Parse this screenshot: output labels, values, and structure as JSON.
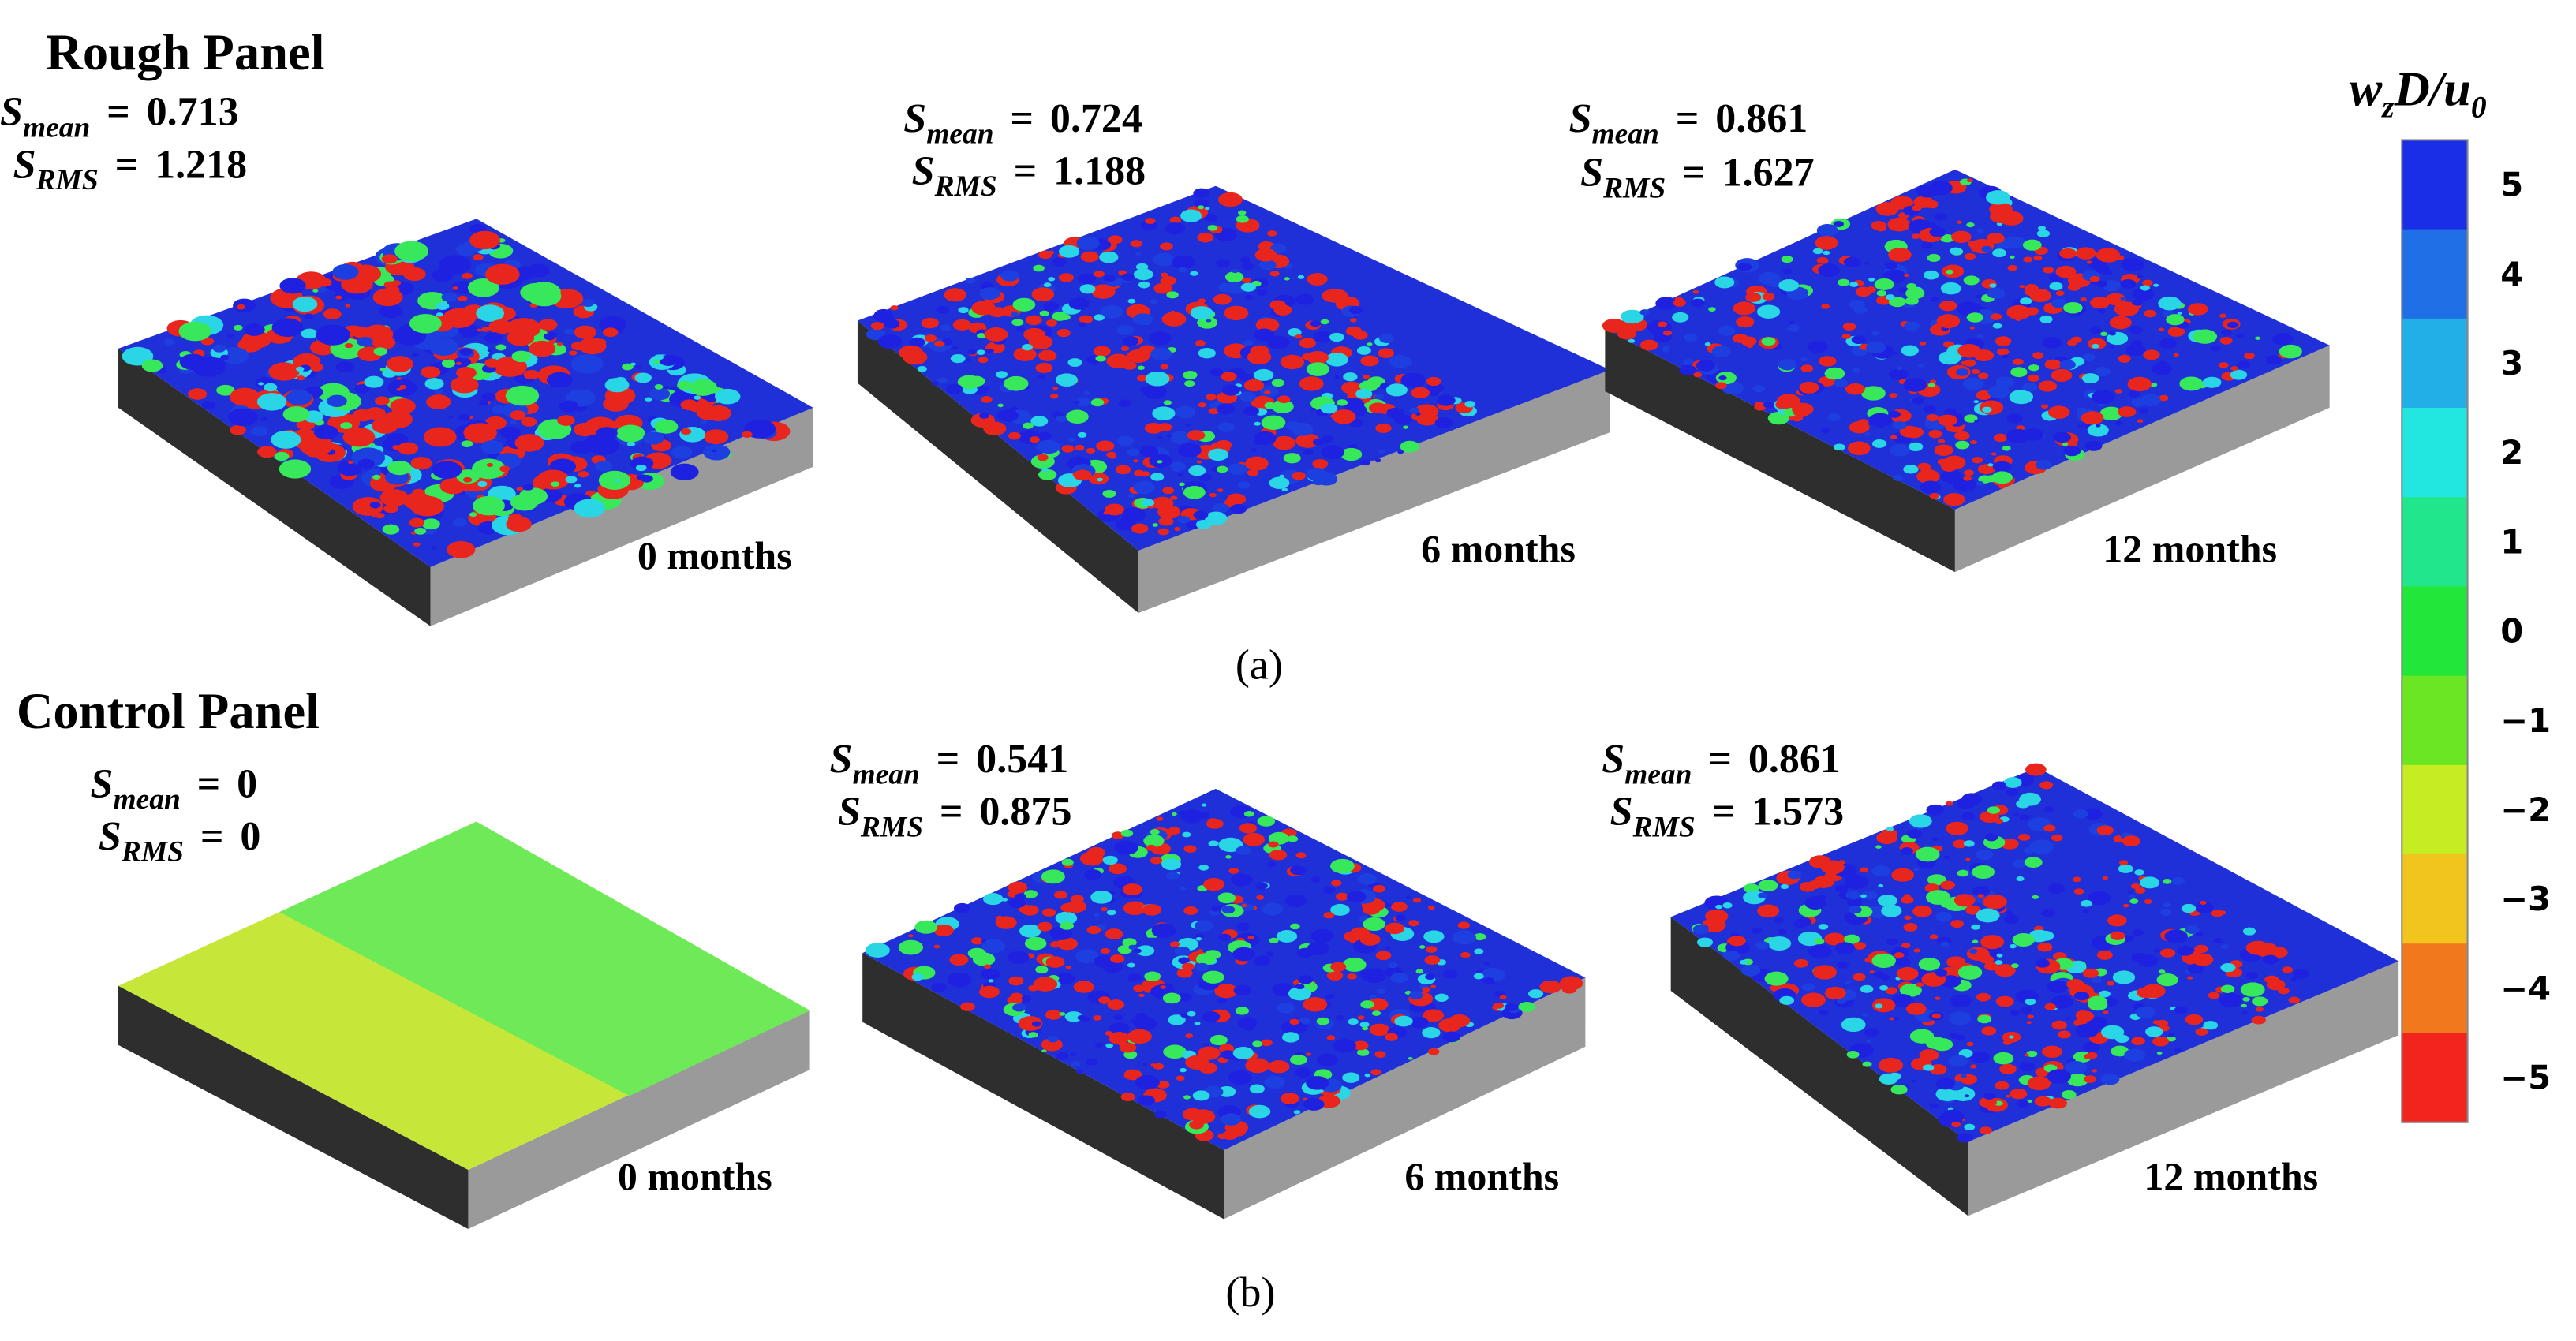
{
  "figure": {
    "rows": [
      {
        "title": "Rough Panel",
        "caption": "(a)",
        "panels": [
          {
            "stats": [
              "0.713",
              "1.218"
            ],
            "time": "0 months"
          },
          {
            "stats": [
              "0.724",
              "1.188"
            ],
            "time": "6 months"
          },
          {
            "stats": [
              "0.861",
              "1.627"
            ],
            "time": "12 months"
          }
        ]
      },
      {
        "title": "Control Panel",
        "caption": "(b)",
        "panels": [
          {
            "stats": [
              "0",
              "0"
            ],
            "time": "0 months"
          },
          {
            "stats": [
              "0.541",
              "0.875"
            ],
            "time": "6 months"
          },
          {
            "stats": [
              "0.861",
              "1.573"
            ],
            "time": "12 months"
          }
        ]
      }
    ],
    "stat_labels": [
      {
        "symbol": "S",
        "subscript": "mean"
      },
      {
        "symbol": "S",
        "subscript": "RMS"
      }
    ],
    "equals": "=",
    "colorbar": {
      "title": {
        "w": "w",
        "w_sub": "z",
        "mid": "D/",
        "u": "u",
        "u_sub": "0"
      },
      "ticks": [
        "5",
        "4",
        "3",
        "2",
        "1",
        "0",
        "−1",
        "−2",
        "−3",
        "−4",
        "−5"
      ],
      "colors": [
        "#1a2ee8",
        "#1f6fe6",
        "#22aee6",
        "#22e6e0",
        "#22e68c",
        "#22e63a",
        "#6be622",
        "#c6ec22",
        "#f2c41e",
        "#f2781e",
        "#f2241e"
      ]
    }
  }
}
